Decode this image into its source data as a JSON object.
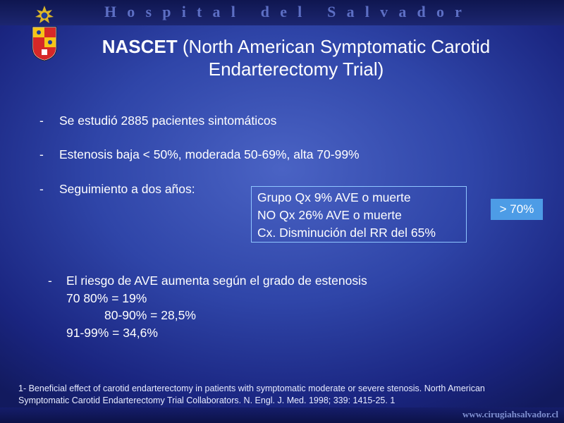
{
  "header": {
    "hospital_name": "Hospital del Salvador"
  },
  "logo": {
    "icon": "university-coat-of-arms-icon",
    "colors": [
      "#d62828",
      "#f5c518",
      "#ffffff",
      "#1f3b99"
    ]
  },
  "title": {
    "bold": "NASCET",
    "rest": " (North American Symptomatic Carotid Endarterectomy Trial)"
  },
  "bullets": [
    {
      "dash": "-",
      "text": "Se estudió 2885 pacientes sintomáticos"
    },
    {
      "dash": "-",
      "text": "Estenosis baja < 50%, moderada 50-69%, alta 70-99%"
    },
    {
      "dash": "-",
      "text": "Seguimiento a dos años:"
    }
  ],
  "results_box": {
    "lines": [
      "Grupo Qx 9% AVE o muerte",
      "NO Qx 26% AVE o muerte",
      "Cx. Disminución del RR del 65%"
    ]
  },
  "tag": {
    "text": "> 70%"
  },
  "risk": {
    "dash": "-",
    "heading": "El riesgo de AVE aumenta según el grado de estenosis",
    "lines": [
      "70 80% = 19%",
      "80-90% = 28,5%",
      "91-99% = 34,6%"
    ]
  },
  "reference": {
    "text": "1- Beneficial effect of carotid endarterectomy in patients with symptomatic moderate or severe stenosis. North American Symptomatic Carotid Endarterectomy Trial Collaborators. N. Engl. J. Med. 1998; 339: 1415-25. 1"
  },
  "footer": {
    "website": "www.cirugiahsalvador.cl"
  },
  "colors": {
    "background": "#2f45a8",
    "box_border": "#8fc6ff",
    "tag_background": "#4d9ce6"
  }
}
